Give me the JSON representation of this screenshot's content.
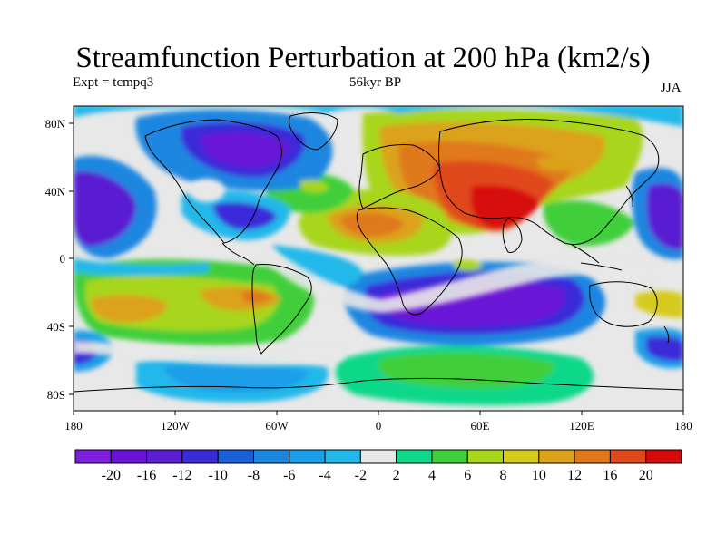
{
  "header": {
    "title": "Streamfunction Perturbation at 200 hPa (km2/s)",
    "expt_label": "Expt = tcmpq3",
    "period_label": "56kyr BP",
    "season_label": "JJA"
  },
  "map": {
    "projection": "cylindrical equidistant",
    "x_ticks": [
      "180",
      "120W",
      "60W",
      "0",
      "60E",
      "120E",
      "180"
    ],
    "y_ticks": [
      "80N",
      "40N",
      "0",
      "40S",
      "80S"
    ],
    "background_color": "#e8e8e8"
  },
  "colorbar": {
    "colors": [
      "#7e1fe0",
      "#6a13d6",
      "#5a1fd2",
      "#3a2bd9",
      "#1a5ed8",
      "#1a86e0",
      "#1a9ee8",
      "#22b8ea",
      "#e8e8e8",
      "#10d88a",
      "#40cf3a",
      "#a8d61a",
      "#d6cb1a",
      "#dca21a",
      "#e0781a",
      "#e04a1a",
      "#d80a0a"
    ],
    "labels": [
      "-20",
      "-16",
      "-12",
      "-10",
      "-8",
      "-6",
      "-4",
      "-2",
      "2",
      "4",
      "6",
      "8",
      "10",
      "12",
      "16",
      "20"
    ]
  }
}
